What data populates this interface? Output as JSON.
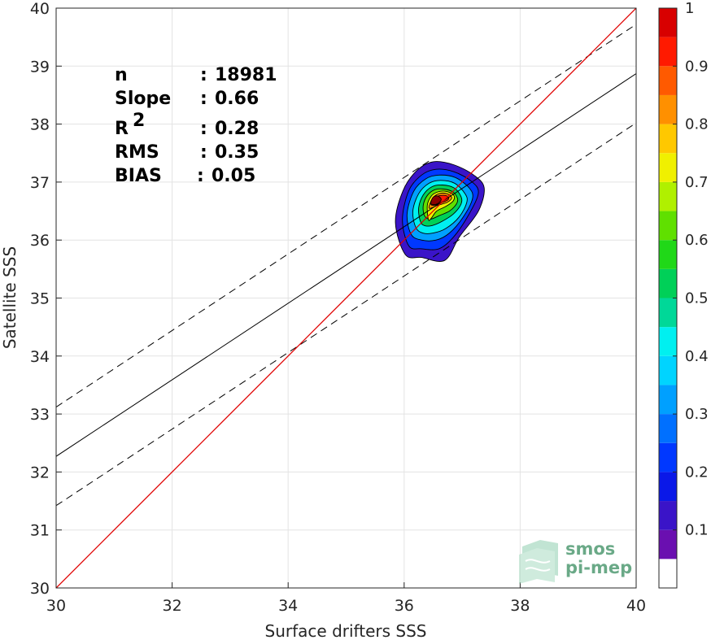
{
  "chart_data": {
    "type": "heatmap",
    "subtype": "density-contour scatter",
    "xlabel": "Surface drifters SSS",
    "ylabel": "Satellite SSS",
    "xlim": [
      30,
      40
    ],
    "ylim": [
      30,
      40
    ],
    "xticks": [
      "30",
      "32",
      "34",
      "36",
      "38",
      "40"
    ],
    "yticks": [
      "30",
      "31",
      "32",
      "33",
      "34",
      "35",
      "36",
      "37",
      "38",
      "39",
      "40"
    ],
    "grid": true,
    "stats": [
      {
        "label": "n",
        "sep": ":",
        "value": "18981"
      },
      {
        "label": "Slope",
        "sep": ":",
        "value": "0.66"
      },
      {
        "label": "R",
        "sup": "2",
        "sep": ":",
        "value": "0.28"
      },
      {
        "label": "RMS",
        "sep": ":",
        "value": "0.35"
      },
      {
        "label": "BIAS",
        "sep": ":",
        "value": "0.05"
      }
    ],
    "lines": {
      "identity": {
        "x": [
          30,
          40
        ],
        "y": [
          30,
          40
        ],
        "color": "#e00000"
      },
      "regression": {
        "x": [
          30,
          40
        ],
        "y": [
          32.27,
          38.87
        ],
        "color": "#000000"
      },
      "upper_bound": {
        "x": [
          30,
          40
        ],
        "y": [
          33.12,
          39.72
        ],
        "color": "#000000"
      },
      "lower_bound": {
        "x": [
          30,
          40
        ],
        "y": [
          31.42,
          38.02
        ],
        "color": "#000000"
      }
    },
    "density_center": {
      "x": 36.55,
      "y": 36.7
    },
    "contours": [
      {
        "level": 0.05,
        "points": [
          [
            36.02,
            35.75
          ],
          [
            35.85,
            36.3
          ],
          [
            35.98,
            36.85
          ],
          [
            36.22,
            37.2
          ],
          [
            36.5,
            37.35
          ],
          [
            36.85,
            37.3
          ],
          [
            37.2,
            37.12
          ],
          [
            37.38,
            36.9
          ],
          [
            37.28,
            36.5
          ],
          [
            36.95,
            36.05
          ],
          [
            36.7,
            35.65
          ],
          [
            36.3,
            35.7
          ]
        ]
      },
      {
        "level": 0.15,
        "points": [
          [
            36.08,
            35.9
          ],
          [
            35.97,
            36.35
          ],
          [
            36.08,
            36.85
          ],
          [
            36.3,
            37.12
          ],
          [
            36.55,
            37.22
          ],
          [
            36.85,
            37.18
          ],
          [
            37.15,
            37.02
          ],
          [
            37.28,
            36.82
          ],
          [
            37.12,
            36.45
          ],
          [
            36.85,
            36.05
          ],
          [
            36.6,
            35.85
          ],
          [
            36.3,
            35.85
          ]
        ]
      },
      {
        "level": 0.25,
        "points": [
          [
            36.12,
            36.1
          ],
          [
            36.05,
            36.45
          ],
          [
            36.17,
            36.85
          ],
          [
            36.38,
            37.06
          ],
          [
            36.6,
            37.12
          ],
          [
            36.88,
            37.08
          ],
          [
            37.12,
            36.9
          ],
          [
            37.18,
            36.72
          ],
          [
            37.02,
            36.4
          ],
          [
            36.78,
            36.12
          ],
          [
            36.55,
            36.0
          ],
          [
            36.3,
            36.0
          ]
        ]
      },
      {
        "level": 0.35,
        "points": [
          [
            36.2,
            36.22
          ],
          [
            36.15,
            36.5
          ],
          [
            36.25,
            36.8
          ],
          [
            36.43,
            36.98
          ],
          [
            36.63,
            37.03
          ],
          [
            36.87,
            36.98
          ],
          [
            37.05,
            36.8
          ],
          [
            37.08,
            36.65
          ],
          [
            36.95,
            36.4
          ],
          [
            36.72,
            36.2
          ],
          [
            36.5,
            36.12
          ],
          [
            36.32,
            36.12
          ]
        ]
      },
      {
        "level": 0.45,
        "points": [
          [
            36.28,
            36.32
          ],
          [
            36.25,
            36.55
          ],
          [
            36.33,
            36.78
          ],
          [
            36.48,
            36.92
          ],
          [
            36.66,
            36.95
          ],
          [
            36.86,
            36.9
          ],
          [
            36.98,
            36.75
          ],
          [
            36.98,
            36.62
          ],
          [
            36.85,
            36.45
          ],
          [
            36.65,
            36.32
          ],
          [
            36.48,
            36.25
          ],
          [
            36.35,
            36.25
          ]
        ]
      },
      {
        "level": 0.55,
        "points": [
          [
            36.35,
            36.42
          ],
          [
            36.33,
            36.6
          ],
          [
            36.4,
            36.77
          ],
          [
            36.53,
            36.87
          ],
          [
            36.68,
            36.88
          ],
          [
            36.84,
            36.83
          ],
          [
            36.92,
            36.72
          ],
          [
            36.9,
            36.62
          ],
          [
            36.78,
            36.5
          ],
          [
            36.6,
            36.42
          ],
          [
            36.45,
            36.36
          ]
        ]
      },
      {
        "level": 0.65,
        "points": [
          [
            36.42,
            36.35
          ],
          [
            36.4,
            36.6
          ],
          [
            36.47,
            36.76
          ],
          [
            36.58,
            36.83
          ],
          [
            36.72,
            36.84
          ],
          [
            36.85,
            36.78
          ],
          [
            36.85,
            36.68
          ],
          [
            36.72,
            36.58
          ],
          [
            36.56,
            36.5
          ],
          [
            36.47,
            36.38
          ]
        ]
      },
      {
        "level": 0.75,
        "points": [
          [
            36.43,
            36.55
          ],
          [
            36.49,
            36.72
          ],
          [
            36.6,
            36.8
          ],
          [
            36.74,
            36.8
          ],
          [
            36.82,
            36.73
          ],
          [
            36.74,
            36.65
          ],
          [
            36.58,
            36.6
          ]
        ]
      },
      {
        "level": 0.85,
        "points": [
          [
            36.46,
            36.62
          ],
          [
            36.52,
            36.73
          ],
          [
            36.63,
            36.77
          ],
          [
            36.74,
            36.76
          ],
          [
            36.76,
            36.7
          ],
          [
            36.64,
            36.64
          ],
          [
            36.52,
            36.6
          ]
        ]
      },
      {
        "level": 0.95,
        "points": [
          [
            36.46,
            36.64
          ],
          [
            36.5,
            36.74
          ],
          [
            36.58,
            36.76
          ],
          [
            36.64,
            36.7
          ],
          [
            36.58,
            36.63
          ],
          [
            36.5,
            36.61
          ]
        ]
      }
    ],
    "colorbar": {
      "levels": [
        0,
        0.05,
        0.1,
        0.15,
        0.2,
        0.25,
        0.3,
        0.35,
        0.4,
        0.45,
        0.5,
        0.55,
        0.6,
        0.65,
        0.7,
        0.75,
        0.8,
        0.85,
        0.9,
        0.95,
        1
      ],
      "colors": [
        "#ffffff",
        "#6a0fb0",
        "#3a14c8",
        "#0a18e8",
        "#0038ff",
        "#0070ff",
        "#00a0ff",
        "#00d4ff",
        "#00f0f0",
        "#00d898",
        "#00d058",
        "#20d818",
        "#60e000",
        "#b0f000",
        "#f0f000",
        "#ffc800",
        "#ff9000",
        "#ff5a00",
        "#ff1a00",
        "#d80000",
        "#8b0000"
      ],
      "tick_labels": [
        "0.1",
        "0.2",
        "0.3",
        "0.4",
        "0.5",
        "0.6",
        "0.7",
        "0.8",
        "0.9",
        "1"
      ],
      "tick_values": [
        0.1,
        0.2,
        0.3,
        0.4,
        0.5,
        0.6,
        0.7,
        0.8,
        0.9,
        1.0
      ]
    }
  },
  "logo": {
    "line1": "smos",
    "line2": "pi-mep",
    "color": "#6aa987"
  }
}
